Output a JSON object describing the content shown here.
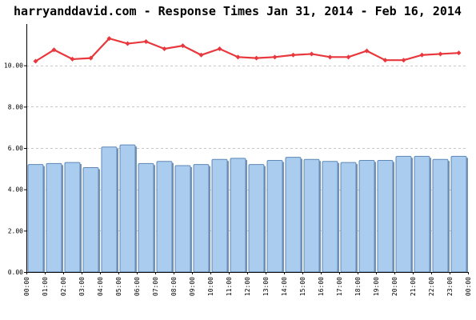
{
  "chart_data": {
    "type": "bar",
    "title": "harryanddavid.com - Response Times Jan 31, 2014 - Feb 16, 2014",
    "xlabel": "",
    "ylabel": "",
    "ylim": [
      0,
      12
    ],
    "yticks": [
      0,
      2,
      4,
      6,
      8,
      10
    ],
    "ytick_labels": [
      "0.00",
      "2.00",
      "4.00",
      "6.00",
      "8.00",
      "10.00"
    ],
    "grid": true,
    "x_labels": [
      "00:00",
      "01:00",
      "02:00",
      "03:00",
      "04:00",
      "05:00",
      "06:00",
      "07:00",
      "08:00",
      "09:00",
      "10:00",
      "11:00",
      "12:00",
      "13:00",
      "14:00",
      "15:00",
      "16:00",
      "17:00",
      "18:00",
      "19:00",
      "20:00",
      "21:00",
      "22:00",
      "23:00",
      "00:00"
    ],
    "categories": [
      "00:00",
      "01:00",
      "02:00",
      "03:00",
      "04:00",
      "05:00",
      "06:00",
      "07:00",
      "08:00",
      "09:00",
      "10:00",
      "11:00",
      "12:00",
      "13:00",
      "14:00",
      "15:00",
      "16:00",
      "17:00",
      "18:00",
      "19:00",
      "20:00",
      "21:00",
      "22:00",
      "23:00"
    ],
    "series": [
      {
        "type": "bar",
        "color": "#a9ccef",
        "values": [
          5.2,
          5.25,
          5.3,
          5.05,
          6.05,
          6.15,
          5.25,
          5.35,
          5.15,
          5.2,
          5.45,
          5.5,
          5.2,
          5.4,
          5.55,
          5.45,
          5.35,
          5.3,
          5.4,
          5.4,
          5.6,
          5.6,
          5.45,
          5.6
        ]
      },
      {
        "type": "line",
        "color": "#e8383d",
        "values": [
          10.2,
          10.75,
          10.3,
          10.35,
          11.3,
          11.05,
          11.15,
          10.8,
          10.95,
          10.5,
          10.8,
          10.4,
          10.35,
          10.4,
          10.5,
          10.55,
          10.4,
          10.4,
          10.7,
          10.25,
          10.25,
          10.5,
          10.55,
          10.6
        ]
      }
    ]
  }
}
